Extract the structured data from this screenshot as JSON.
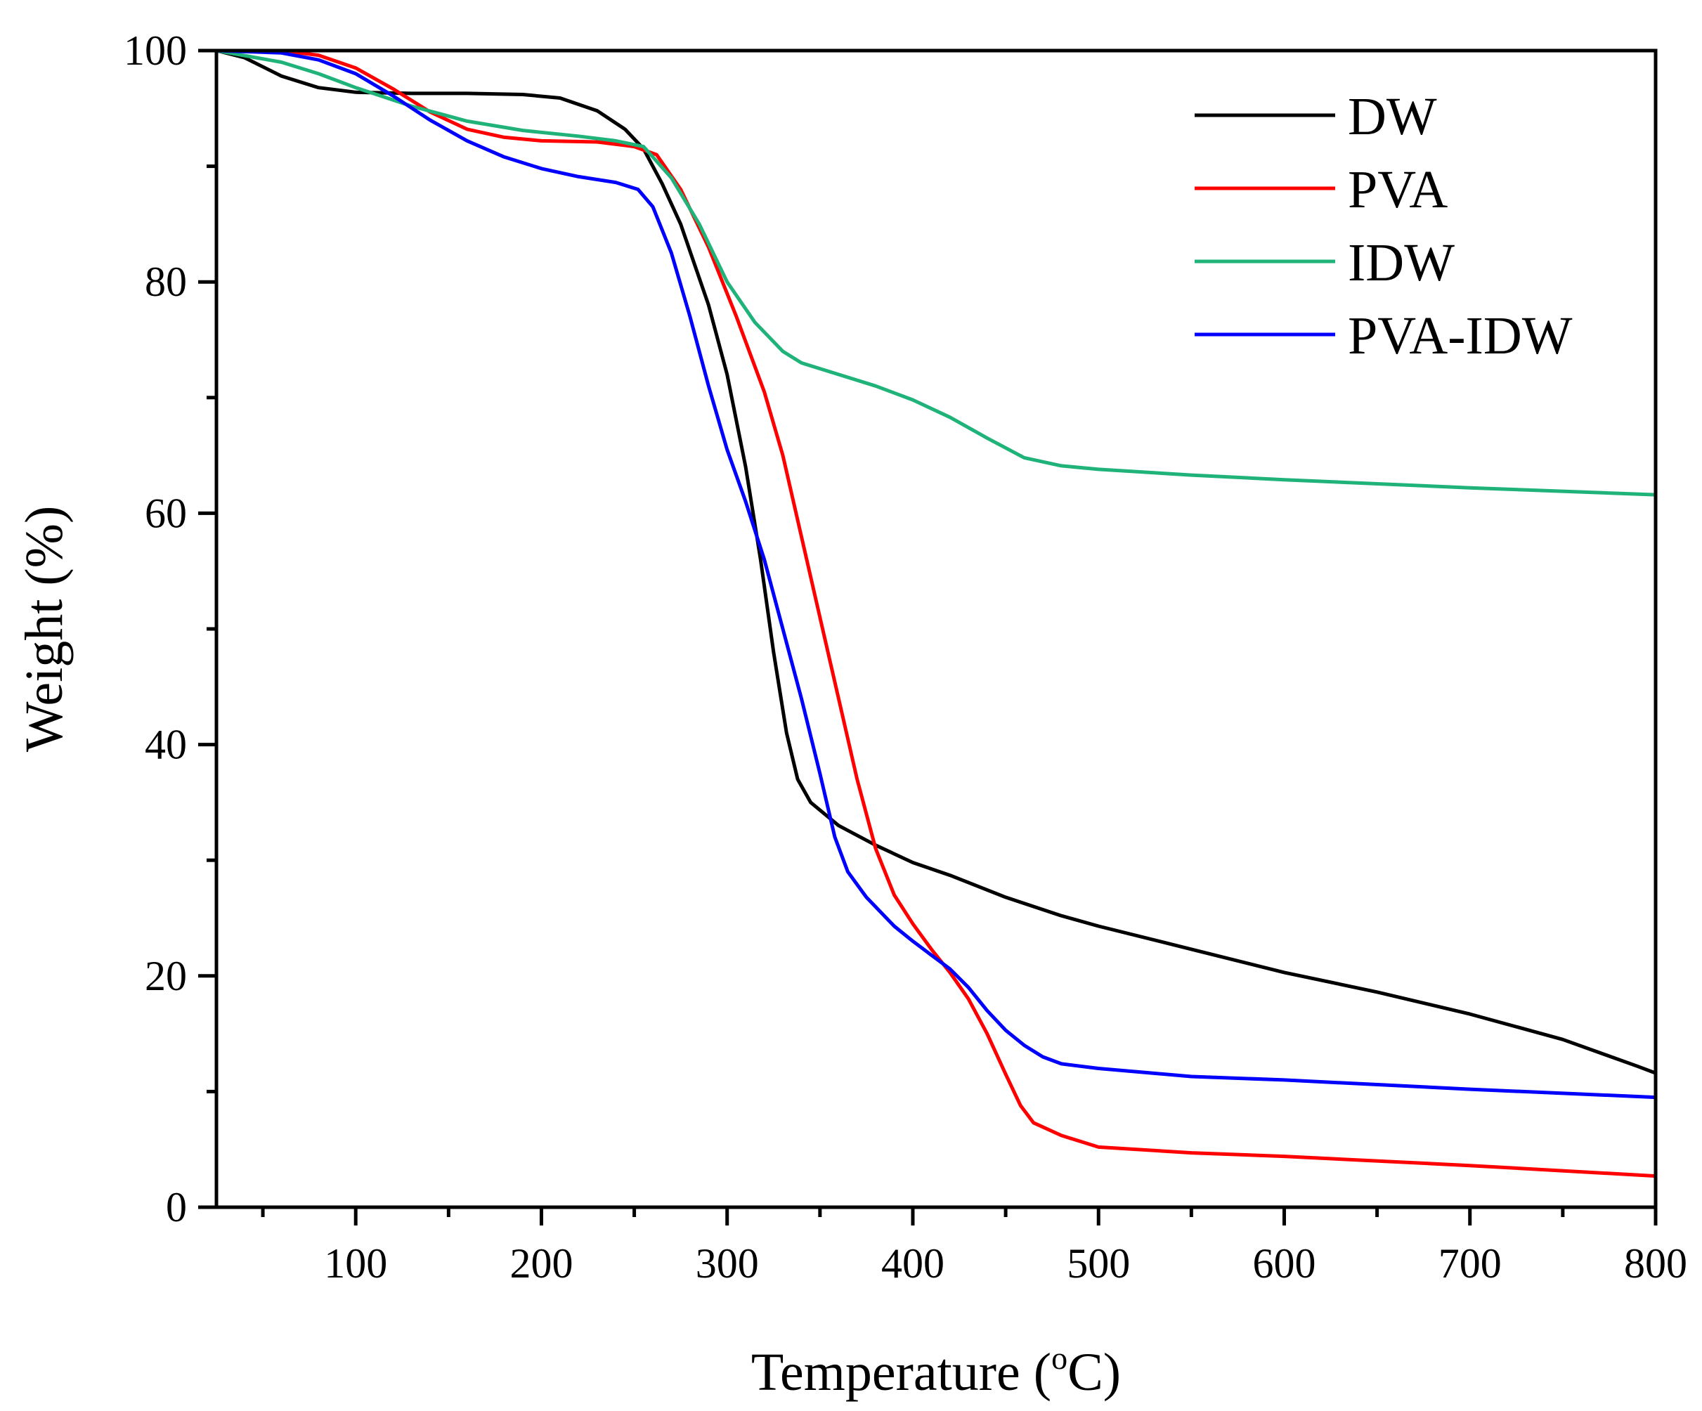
{
  "chart_data": {
    "type": "line",
    "title": "",
    "xlabel_main": "Temperature (",
    "xlabel_sup": "o",
    "xlabel_tail": "C)",
    "ylabel": "Weight (%)",
    "xlim": [
      25,
      800
    ],
    "ylim": [
      0,
      100
    ],
    "x_ticks": [
      100,
      200,
      300,
      400,
      500,
      600,
      700,
      800
    ],
    "x_minor_ticks": [
      50,
      150,
      250,
      350,
      450,
      550,
      650,
      750
    ],
    "y_ticks": [
      0,
      20,
      40,
      60,
      80,
      100
    ],
    "y_minor_ticks": [
      10,
      30,
      50,
      70,
      90
    ],
    "grid": false,
    "legend_position": "top-right",
    "series": [
      {
        "name": "DW",
        "color": "#000000",
        "points": [
          [
            25,
            100
          ],
          [
            40,
            99.4
          ],
          [
            60,
            97.8
          ],
          [
            80,
            96.8
          ],
          [
            100,
            96.4
          ],
          [
            130,
            96.3
          ],
          [
            160,
            96.3
          ],
          [
            190,
            96.2
          ],
          [
            210,
            95.9
          ],
          [
            230,
            94.8
          ],
          [
            245,
            93.2
          ],
          [
            255,
            91.5
          ],
          [
            265,
            88.5
          ],
          [
            275,
            85
          ],
          [
            290,
            78
          ],
          [
            300,
            72
          ],
          [
            310,
            64
          ],
          [
            318,
            56
          ],
          [
            325,
            48
          ],
          [
            332,
            41
          ],
          [
            338,
            37
          ],
          [
            345,
            35
          ],
          [
            360,
            33
          ],
          [
            380,
            31.3
          ],
          [
            400,
            29.8
          ],
          [
            420,
            28.7
          ],
          [
            450,
            26.8
          ],
          [
            480,
            25.2
          ],
          [
            500,
            24.3
          ],
          [
            550,
            22.3
          ],
          [
            600,
            20.3
          ],
          [
            650,
            18.6
          ],
          [
            700,
            16.7
          ],
          [
            750,
            14.5
          ],
          [
            790,
            12.2
          ],
          [
            800,
            11.6
          ]
        ]
      },
      {
        "name": "PVA",
        "color": "#ff0000",
        "points": [
          [
            25,
            100
          ],
          [
            60,
            100
          ],
          [
            80,
            99.6
          ],
          [
            100,
            98.5
          ],
          [
            120,
            96.7
          ],
          [
            140,
            94.7
          ],
          [
            160,
            93.2
          ],
          [
            180,
            92.5
          ],
          [
            200,
            92.2
          ],
          [
            230,
            92.1
          ],
          [
            250,
            91.7
          ],
          [
            262,
            91
          ],
          [
            275,
            88
          ],
          [
            290,
            83
          ],
          [
            305,
            77
          ],
          [
            320,
            70.5
          ],
          [
            330,
            65
          ],
          [
            340,
            58
          ],
          [
            350,
            51
          ],
          [
            360,
            44
          ],
          [
            370,
            37
          ],
          [
            380,
            31
          ],
          [
            390,
            27
          ],
          [
            400,
            24.5
          ],
          [
            410,
            22.3
          ],
          [
            420,
            20.3
          ],
          [
            430,
            18
          ],
          [
            440,
            15
          ],
          [
            450,
            11.5
          ],
          [
            458,
            8.8
          ],
          [
            465,
            7.3
          ],
          [
            480,
            6.2
          ],
          [
            500,
            5.2
          ],
          [
            550,
            4.7
          ],
          [
            600,
            4.4
          ],
          [
            700,
            3.6
          ],
          [
            800,
            2.7
          ]
        ]
      },
      {
        "name": "IDW",
        "color": "#1fb37a",
        "points": [
          [
            25,
            100
          ],
          [
            60,
            99
          ],
          [
            80,
            98
          ],
          [
            100,
            96.8
          ],
          [
            130,
            95.2
          ],
          [
            160,
            93.9
          ],
          [
            190,
            93.1
          ],
          [
            220,
            92.6
          ],
          [
            240,
            92.2
          ],
          [
            255,
            91.7
          ],
          [
            270,
            89
          ],
          [
            285,
            85
          ],
          [
            300,
            80
          ],
          [
            315,
            76.5
          ],
          [
            330,
            74
          ],
          [
            340,
            73
          ],
          [
            360,
            72
          ],
          [
            380,
            71
          ],
          [
            400,
            69.8
          ],
          [
            420,
            68.3
          ],
          [
            440,
            66.5
          ],
          [
            460,
            64.8
          ],
          [
            480,
            64.1
          ],
          [
            500,
            63.8
          ],
          [
            550,
            63.3
          ],
          [
            600,
            62.9
          ],
          [
            700,
            62.2
          ],
          [
            800,
            61.6
          ]
        ]
      },
      {
        "name": "PVA-IDW",
        "color": "#0000ff",
        "points": [
          [
            25,
            100
          ],
          [
            60,
            99.8
          ],
          [
            80,
            99.2
          ],
          [
            100,
            98
          ],
          [
            120,
            96.1
          ],
          [
            140,
            94
          ],
          [
            160,
            92.2
          ],
          [
            180,
            90.8
          ],
          [
            200,
            89.8
          ],
          [
            220,
            89.1
          ],
          [
            240,
            88.6
          ],
          [
            252,
            88
          ],
          [
            260,
            86.5
          ],
          [
            270,
            82.5
          ],
          [
            280,
            77
          ],
          [
            290,
            71
          ],
          [
            300,
            65.5
          ],
          [
            310,
            61
          ],
          [
            320,
            56
          ],
          [
            330,
            50
          ],
          [
            340,
            44
          ],
          [
            350,
            37.5
          ],
          [
            358,
            32
          ],
          [
            365,
            29
          ],
          [
            375,
            26.8
          ],
          [
            390,
            24.3
          ],
          [
            400,
            23
          ],
          [
            410,
            21.8
          ],
          [
            420,
            20.6
          ],
          [
            430,
            19
          ],
          [
            440,
            17
          ],
          [
            450,
            15.3
          ],
          [
            460,
            14
          ],
          [
            470,
            13
          ],
          [
            480,
            12.4
          ],
          [
            500,
            12
          ],
          [
            550,
            11.3
          ],
          [
            600,
            11
          ],
          [
            700,
            10.2
          ],
          [
            800,
            9.5
          ]
        ]
      }
    ]
  }
}
